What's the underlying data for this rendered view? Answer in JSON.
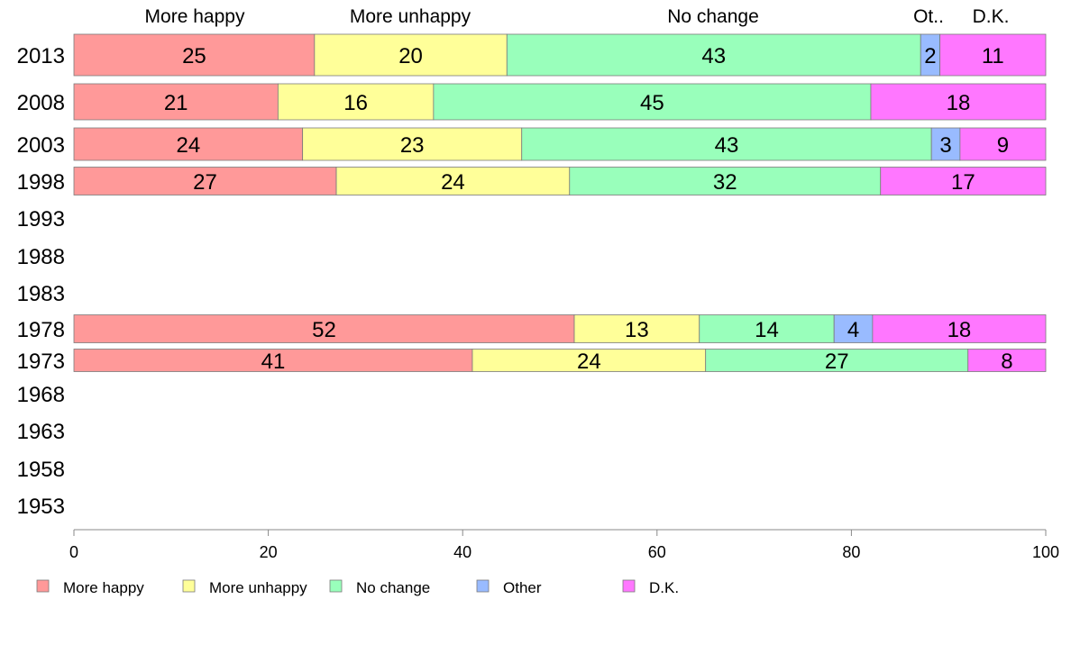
{
  "chart_data": {
    "type": "bar",
    "orientation": "horizontal",
    "stacked": true,
    "title": "",
    "xlabel": "",
    "ylabel": "",
    "xlim": [
      0,
      100
    ],
    "xticks": [
      "0",
      "20",
      "40",
      "60",
      "80",
      "100"
    ],
    "categories": [
      "2013",
      "2008",
      "2003",
      "1998",
      "1993",
      "1988",
      "1983",
      "1978",
      "1973",
      "1968",
      "1963",
      "1958",
      "1953"
    ],
    "column_labels": [
      "More happy",
      "More unhappy",
      "No change",
      "Ot..",
      "D.K."
    ],
    "series": [
      {
        "name": "More happy",
        "color": "#ff9999",
        "values": [
          25,
          21,
          24,
          27,
          null,
          null,
          null,
          52,
          41,
          null,
          null,
          null,
          null
        ]
      },
      {
        "name": "More unhappy",
        "color": "#ffff99",
        "values": [
          20,
          16,
          23,
          24,
          null,
          null,
          null,
          13,
          24,
          null,
          null,
          null,
          null
        ]
      },
      {
        "name": "No change",
        "color": "#99ffbb",
        "values": [
          43,
          45,
          43,
          32,
          null,
          null,
          null,
          14,
          27,
          null,
          null,
          null,
          null
        ]
      },
      {
        "name": "Other",
        "color": "#99bbff",
        "values": [
          2,
          0,
          3,
          0,
          null,
          null,
          null,
          4,
          0,
          null,
          null,
          null,
          null
        ]
      },
      {
        "name": "D.K.",
        "color": "#ff77ff",
        "values": [
          11,
          18,
          9,
          17,
          null,
          null,
          null,
          18,
          8,
          null,
          null,
          null,
          null
        ]
      }
    ],
    "legend": {
      "placement": "bottom-left",
      "entries": [
        "More happy",
        "More unhappy",
        "No change",
        "Other",
        "D.K."
      ]
    },
    "grid": false
  }
}
